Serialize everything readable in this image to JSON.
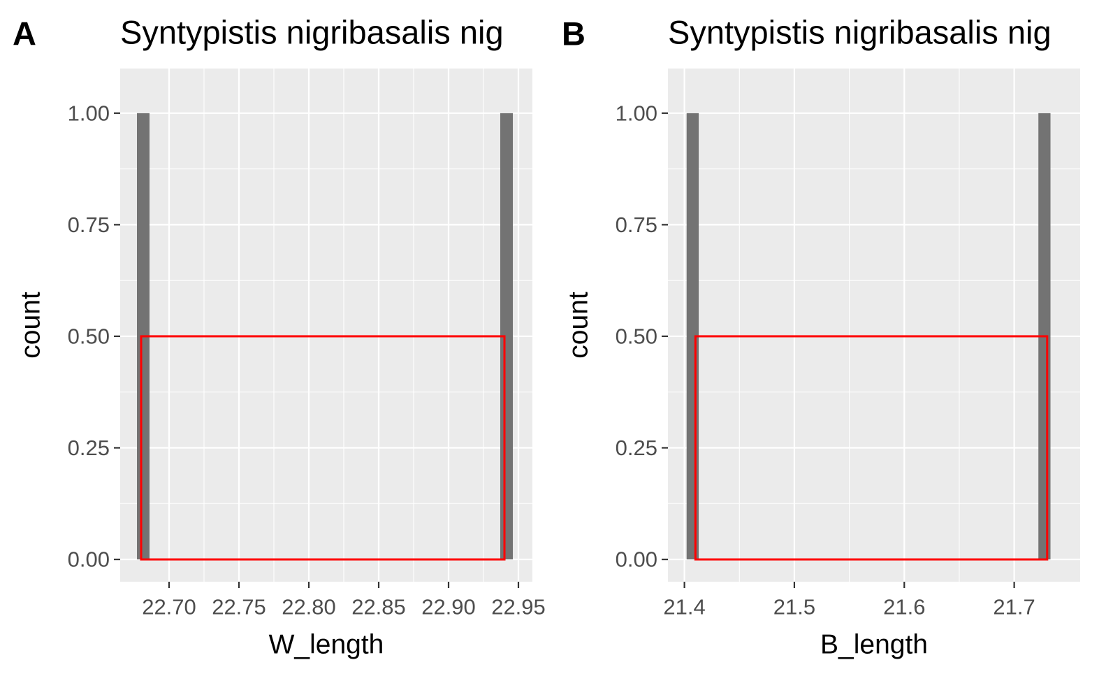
{
  "chart_data": [
    {
      "type": "bar",
      "panel_label": "A",
      "title": "Syntypistis nigribasalis nig",
      "xlabel": "W_length",
      "ylabel": "count",
      "xlim": [
        22.665,
        22.96
      ],
      "ylim": [
        -0.05,
        1.1
      ],
      "x_ticks": [
        22.7,
        22.75,
        22.8,
        22.85,
        22.9,
        22.95
      ],
      "x_tick_labels": [
        "22.70",
        "22.75",
        "22.80",
        "22.85",
        "22.90",
        "22.95"
      ],
      "y_ticks": [
        0,
        0.25,
        0.5,
        0.75,
        1.0
      ],
      "y_tick_labels": [
        "0.00",
        "0.25",
        "0.50",
        "0.75",
        "1.00"
      ],
      "bars": [
        {
          "x0": 22.677,
          "x1": 22.686,
          "count": 1
        },
        {
          "x0": 22.937,
          "x1": 22.946,
          "count": 1
        }
      ],
      "density_outline": {
        "x0": 22.68,
        "x1": 22.94,
        "y": 0.5
      },
      "grid": true,
      "bar_color": "#737373",
      "outline_color": "#ff0000",
      "panel_background": "#ebebeb"
    },
    {
      "type": "bar",
      "panel_label": "B",
      "title": "Syntypistis nigribasalis nig",
      "xlabel": "B_length",
      "ylabel": "count",
      "xlim": [
        21.385,
        21.76
      ],
      "ylim": [
        -0.05,
        1.1
      ],
      "x_ticks": [
        21.4,
        21.5,
        21.6,
        21.7
      ],
      "x_tick_labels": [
        "21.4",
        "21.5",
        "21.6",
        "21.7"
      ],
      "y_ticks": [
        0,
        0.25,
        0.5,
        0.75,
        1.0
      ],
      "y_tick_labels": [
        "0.00",
        "0.25",
        "0.50",
        "0.75",
        "1.00"
      ],
      "bars": [
        {
          "x0": 21.402,
          "x1": 21.413,
          "count": 1
        },
        {
          "x0": 21.722,
          "x1": 21.733,
          "count": 1
        }
      ],
      "density_outline": {
        "x0": 21.41,
        "x1": 21.73,
        "y": 0.5
      },
      "grid": true,
      "bar_color": "#737373",
      "outline_color": "#ff0000",
      "panel_background": "#ebebeb"
    }
  ]
}
